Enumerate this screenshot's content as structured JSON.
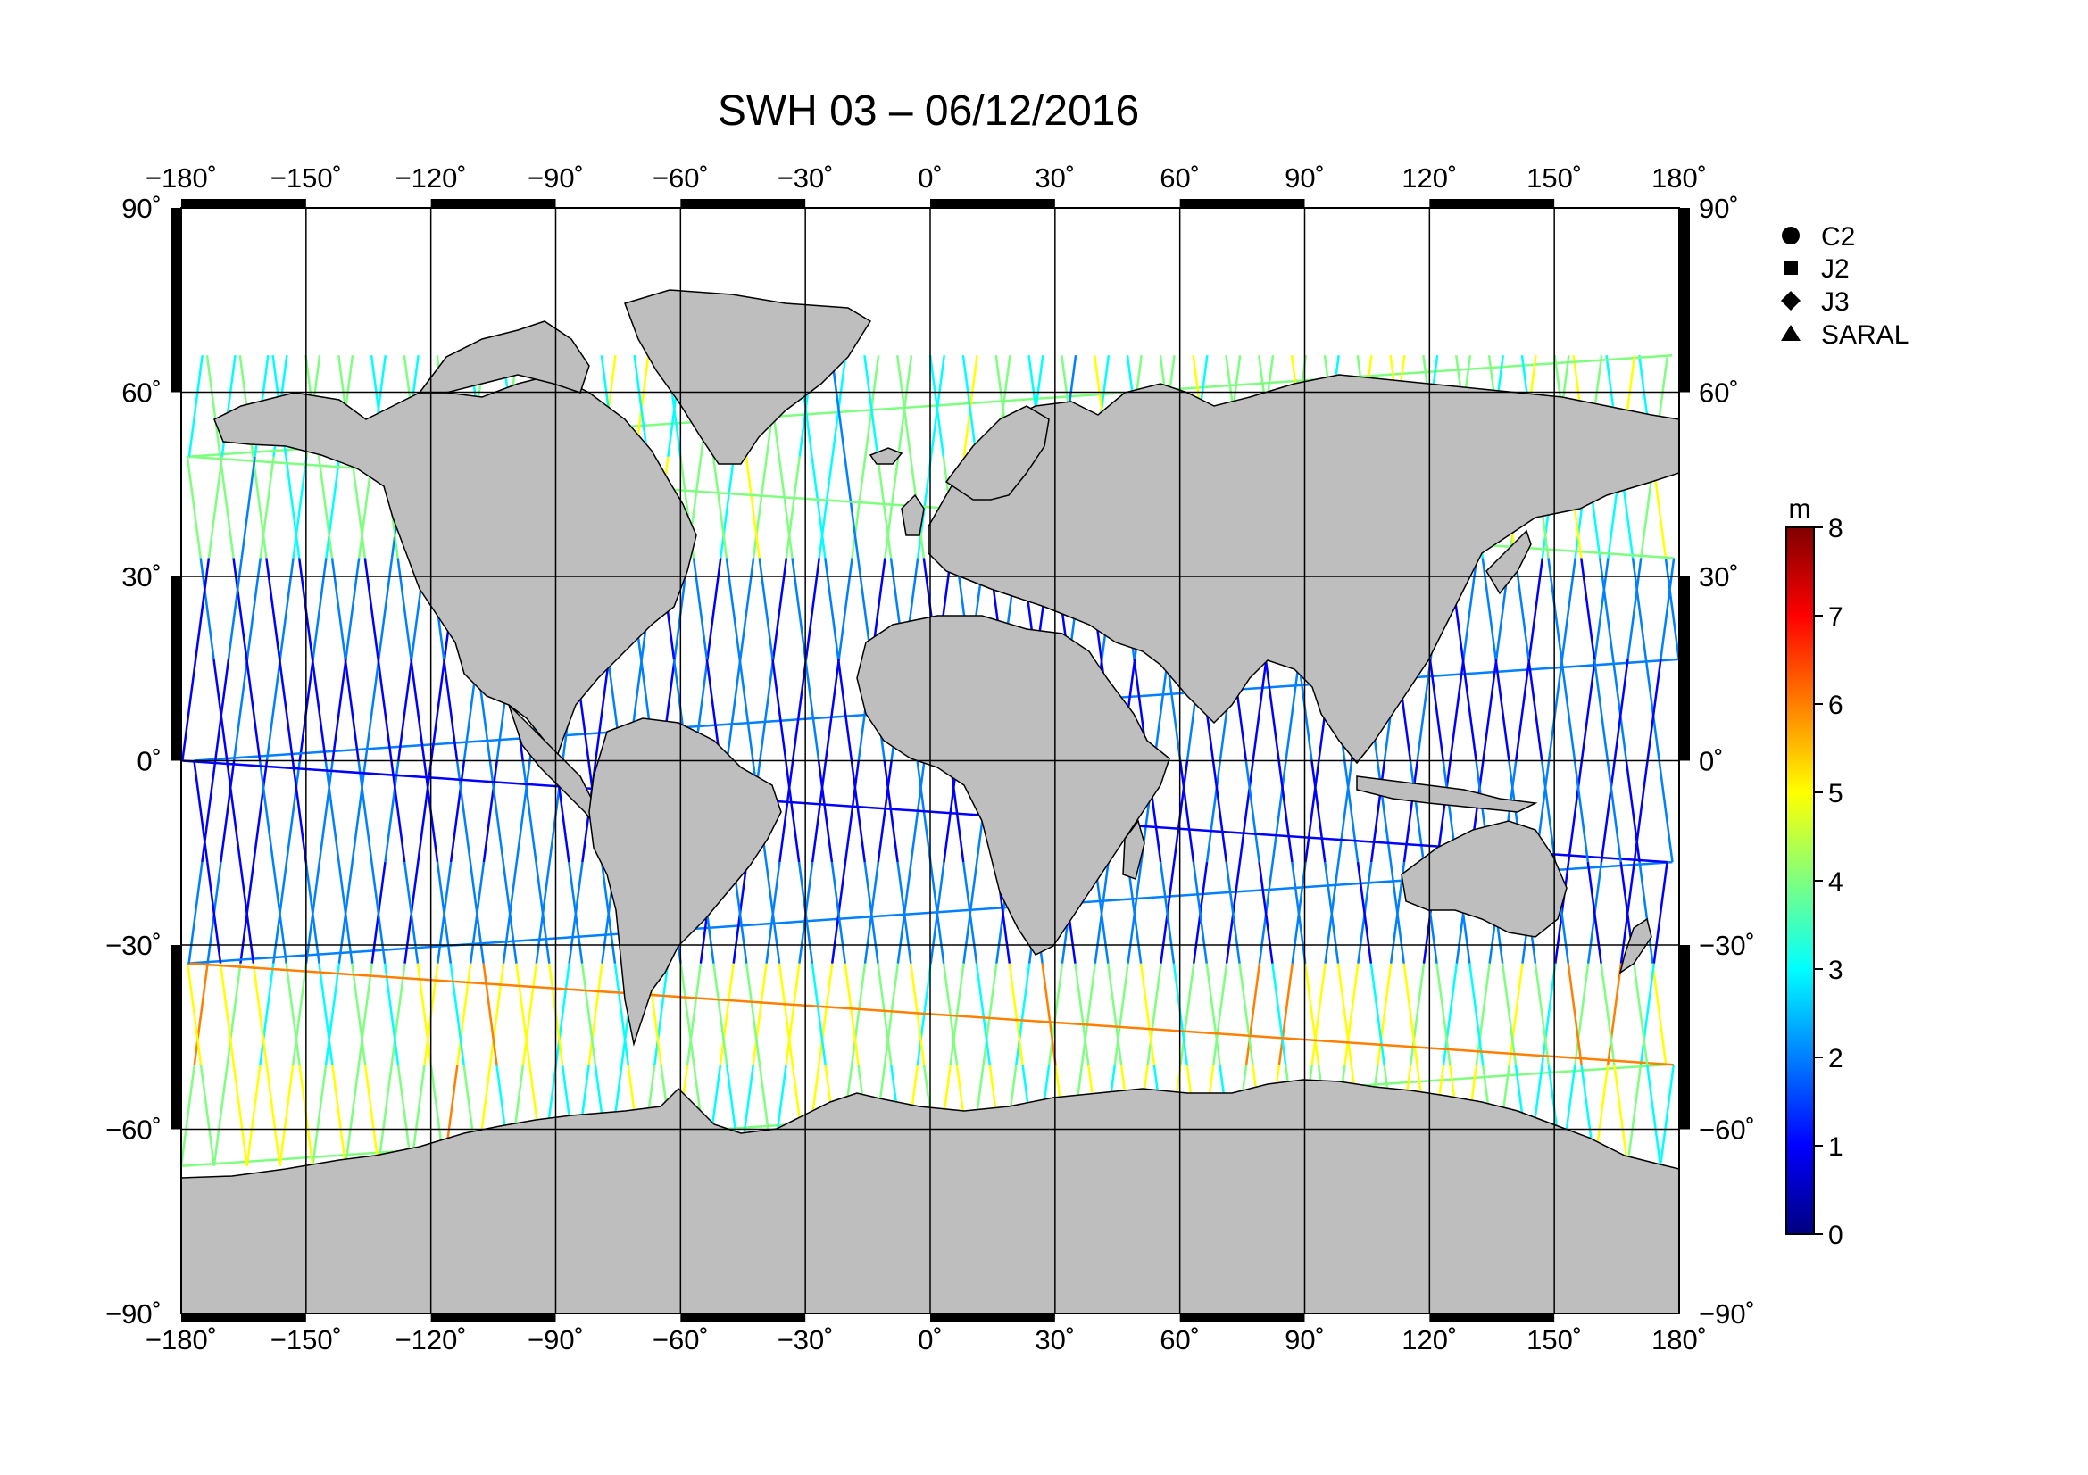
{
  "title": "SWH 03 – 06/12/2016",
  "map": {
    "projection": "equirectangular",
    "lon_range": [
      -180,
      180
    ],
    "lat_range": [
      -90,
      90
    ],
    "lon_ticks": [
      "−180˚",
      "−150˚",
      "−120˚",
      "−90˚",
      "−60˚",
      "−30˚",
      "0˚",
      "30˚",
      "60˚",
      "90˚",
      "120˚",
      "150˚",
      "180˚"
    ],
    "lat_ticks": [
      "90˚",
      "60˚",
      "30˚",
      "0˚",
      "−30˚",
      "−60˚",
      "−90˚"
    ],
    "grid": true,
    "land_color": "#bebebe",
    "ocean_color": "#ffffff"
  },
  "legend": {
    "placement": "right",
    "items": [
      {
        "label": "C2",
        "marker": "circle"
      },
      {
        "label": "J2",
        "marker": "square"
      },
      {
        "label": "J3",
        "marker": "diamond"
      },
      {
        "label": "SARAL",
        "marker": "triangle"
      }
    ]
  },
  "colorbar": {
    "unit": "m",
    "min": 0,
    "max": 8,
    "ticks": [
      "0",
      "1",
      "2",
      "3",
      "4",
      "5",
      "6",
      "7",
      "8"
    ],
    "colormap": [
      "#00007f",
      "#0000ff",
      "#007fff",
      "#00ffff",
      "#7fff7f",
      "#ffff00",
      "#ff7f00",
      "#ff0000",
      "#7f0000"
    ]
  }
}
